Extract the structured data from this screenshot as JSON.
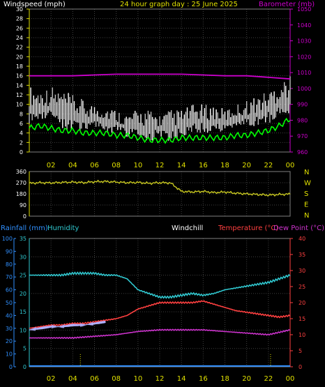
{
  "header": {
    "left_title": "Windspeed (mph)",
    "center_title": "24 hour graph day : 25 June 2025",
    "right_title": "Barometer (mb)"
  },
  "lower_header": {
    "rain_label": "Rainfall (mm)",
    "humidity_label": "Humidity",
    "windchill_label": "Windchill",
    "temperature_label": "Temperature (°C)",
    "dewpoint_label": "Dew Point (°C)"
  },
  "colors": {
    "windspeed": "#ffffff",
    "windspeed_fill": "#bdbdbd",
    "wind_avg": "#00ff00",
    "barometer": "#cc00cc",
    "wind_direction": "#c8c820",
    "humidity": "#30c8d0",
    "temperature": "#ff4040",
    "dewpoint": "#cc33cc",
    "windchill": "#b0b0ff",
    "rainfall": "#3090ff",
    "axis_yellow": "#e0e000",
    "grid": "#404040"
  },
  "chart_data": [
    {
      "type": "line",
      "name": "wind-barometer",
      "xlim": [
        0,
        24
      ],
      "x_tick_labels": [
        "02",
        "04",
        "06",
        "08",
        "10",
        "12",
        "14",
        "16",
        "18",
        "20",
        "22",
        "00"
      ],
      "y_left": {
        "label": "Windspeed (mph)",
        "ylim": [
          0,
          30
        ],
        "ticks": [
          0,
          2,
          4,
          6,
          8,
          10,
          12,
          14,
          16,
          18,
          20,
          22,
          24,
          26,
          28,
          30
        ]
      },
      "y_right": {
        "label": "Barometer (mb)",
        "ylim": [
          960,
          1050
        ],
        "ticks": [
          960,
          970,
          980,
          990,
          1000,
          1010,
          1020,
          1030,
          1040,
          1050
        ]
      },
      "series": [
        {
          "name": "Windspeed",
          "axis": "left",
          "kind": "gust",
          "x": [
            0,
            1,
            2,
            3,
            4,
            5,
            6,
            7,
            8,
            9,
            10,
            11,
            12,
            13,
            14,
            15,
            16,
            17,
            18,
            19,
            20,
            21,
            22,
            23,
            24
          ],
          "high": [
            14,
            13,
            14,
            13,
            12,
            11,
            10,
            10,
            9,
            8,
            9,
            9,
            8,
            9,
            9,
            10,
            10,
            10,
            9,
            10,
            11,
            12,
            13,
            15,
            16
          ],
          "low": [
            6,
            7,
            6,
            5,
            4,
            4,
            5,
            4,
            4,
            3,
            3,
            2,
            3,
            2,
            3,
            4,
            4,
            4,
            4,
            5,
            5,
            5,
            6,
            7,
            8
          ]
        },
        {
          "name": "Average wind",
          "axis": "left",
          "x": [
            0,
            1,
            2,
            3,
            4,
            5,
            6,
            7,
            8,
            9,
            10,
            11,
            12,
            13,
            14,
            15,
            16,
            17,
            18,
            19,
            20,
            21,
            22,
            23,
            24
          ],
          "y": [
            5,
            5.5,
            5,
            4.5,
            4.5,
            4,
            4,
            4,
            3.5,
            3.5,
            3,
            2.5,
            2.5,
            2.5,
            3,
            3,
            3,
            3,
            3,
            3.5,
            3.5,
            4,
            4.5,
            5.5,
            7
          ]
        },
        {
          "name": "Barometer",
          "axis": "right",
          "x": [
            0,
            2,
            4,
            6,
            8,
            10,
            12,
            14,
            16,
            18,
            20,
            22,
            24
          ],
          "y": [
            1008,
            1008,
            1008,
            1008.5,
            1009,
            1009,
            1009,
            1009,
            1008.5,
            1008,
            1008,
            1007,
            1006
          ]
        }
      ]
    },
    {
      "type": "line",
      "name": "wind-direction",
      "xlim": [
        0,
        24
      ],
      "y_left": {
        "ylim": [
          0,
          360
        ],
        "ticks": [
          0,
          90,
          180,
          270,
          360
        ]
      },
      "y_right_labels": [
        "N",
        "W",
        "S",
        "E",
        "N"
      ],
      "series": [
        {
          "name": "Wind direction",
          "x": [
            0,
            1,
            2,
            3,
            4,
            5,
            6,
            7,
            8,
            9,
            10,
            11,
            12,
            13,
            14,
            15,
            16,
            17,
            18,
            19,
            20,
            21,
            22,
            23,
            24
          ],
          "y": [
            265,
            270,
            268,
            272,
            275,
            270,
            278,
            280,
            275,
            270,
            272,
            265,
            270,
            268,
            200,
            195,
            200,
            190,
            195,
            185,
            180,
            175,
            170,
            175,
            178
          ]
        }
      ]
    },
    {
      "type": "line",
      "name": "temp-humidity-rain",
      "xlim": [
        0,
        24
      ],
      "x_tick_labels": [
        "02",
        "04",
        "06",
        "08",
        "10",
        "12",
        "14",
        "16",
        "18",
        "20",
        "22",
        "00"
      ],
      "y_left_outer": {
        "label": "Rainfall (mm)",
        "ylim": [
          0,
          100
        ],
        "ticks": [
          0,
          10,
          20,
          30,
          40,
          50,
          60,
          70,
          80,
          90,
          100
        ]
      },
      "y_left_inner": {
        "label": "Humidity",
        "ylim": [
          0,
          35
        ],
        "ticks": [
          0,
          5,
          10,
          15,
          20,
          25,
          30,
          35
        ]
      },
      "y_right": {
        "label": "Temperature (°C)",
        "ylim": [
          0,
          40
        ],
        "ticks": [
          0,
          5,
          10,
          15,
          20,
          25,
          30,
          35,
          40
        ]
      },
      "series": [
        {
          "name": "Humidity",
          "axis": "inner",
          "x": [
            0,
            1,
            2,
            3,
            4,
            5,
            6,
            7,
            8,
            9,
            10,
            11,
            12,
            13,
            14,
            15,
            16,
            17,
            18,
            19,
            20,
            21,
            22,
            23,
            24
          ],
          "y": [
            25,
            25,
            25,
            25,
            25.5,
            25.5,
            25.5,
            25,
            25,
            24,
            21,
            20,
            19,
            19,
            19.5,
            20,
            19.5,
            20,
            21,
            21.5,
            22,
            22.5,
            23,
            24,
            25
          ]
        },
        {
          "name": "Temperature",
          "axis": "right",
          "x": [
            0,
            1,
            2,
            3,
            4,
            5,
            6,
            7,
            8,
            9,
            10,
            11,
            12,
            13,
            14,
            15,
            16,
            17,
            18,
            19,
            20,
            21,
            22,
            23,
            24
          ],
          "y": [
            12,
            12.5,
            13,
            13,
            13.5,
            13.5,
            14,
            14.5,
            15,
            16,
            18,
            19,
            20,
            20,
            20,
            20,
            20.5,
            19.5,
            18.5,
            17.5,
            17,
            16.5,
            16,
            15.5,
            16
          ]
        },
        {
          "name": "Windchill",
          "axis": "right",
          "x": [
            0,
            1,
            2,
            3,
            4,
            5,
            6,
            7
          ],
          "y": [
            11.5,
            12,
            12.5,
            12.5,
            13,
            13,
            13.5,
            14
          ]
        },
        {
          "name": "Dew Point",
          "axis": "right",
          "x": [
            0,
            2,
            4,
            6,
            8,
            10,
            12,
            14,
            16,
            18,
            20,
            22,
            24
          ],
          "y": [
            9,
            9,
            9,
            9.5,
            10,
            11,
            11.5,
            11.5,
            11.5,
            11,
            10.5,
            10,
            11.5
          ]
        },
        {
          "name": "Rainfall",
          "axis": "outer",
          "x": [
            0,
            24
          ],
          "y": [
            0,
            0
          ]
        }
      ],
      "markers": [
        4.7,
        22.2
      ]
    }
  ]
}
